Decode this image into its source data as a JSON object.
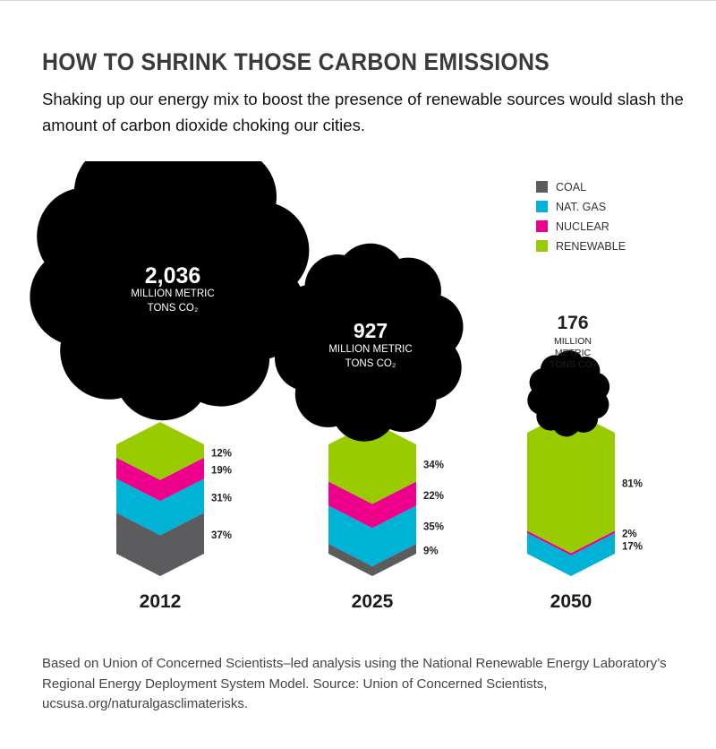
{
  "title": "HOW TO SHRINK THOSE CARBON EMISSIONS",
  "subtitle": "Shaking up our energy mix to boost the presence of renewable sources would slash the amount of carbon dioxide choking our cities.",
  "footer": "Based on Union of Concerned Scientists–led analysis using the National Renewable Energy Laboratory’s Regional Energy Deployment System Model. Source: Union of Concerned Scientists, ucsusa.org/naturalgasclimaterisks.",
  "chart_data": {
    "type": "bar",
    "categories": [
      "2012",
      "2025",
      "2050"
    ],
    "stack_order": [
      "COAL",
      "NAT. GAS",
      "NUCLEAR",
      "RENEWABLE"
    ],
    "series": [
      {
        "name": "COAL",
        "color": "#5c5c5e",
        "values": [
          37,
          9,
          0
        ]
      },
      {
        "name": "NAT. GAS",
        "color": "#00b2d6",
        "values": [
          31,
          35,
          17
        ]
      },
      {
        "name": "NUCLEAR",
        "color": "#ec008c",
        "values": [
          19,
          22,
          2
        ]
      },
      {
        "name": "RENEWABLE",
        "color": "#99cc00",
        "values": [
          12,
          34,
          81
        ]
      }
    ],
    "segment_labels": [
      [
        "37%",
        "31%",
        "19%",
        "12%"
      ],
      [
        "9%",
        "35%",
        "22%",
        "34%"
      ],
      [
        "",
        "17%",
        "2%",
        "81%"
      ]
    ],
    "emissions": [
      {
        "year": "2012",
        "value": 2036,
        "value_label": "2,036",
        "unit_lines": [
          "MILLION METRIC",
          "TONS CO₂"
        ]
      },
      {
        "year": "2025",
        "value": 927,
        "value_label": "927",
        "unit_lines": [
          "MILLION METRIC",
          "TONS CO₂"
        ]
      },
      {
        "year": "2050",
        "value": 176,
        "value_label": "176",
        "unit_lines": [
          "MILLION",
          "METRIC",
          "TONS CO₂"
        ]
      }
    ],
    "legend": [
      {
        "label": "COAL",
        "color": "#5c5c5e"
      },
      {
        "label": "NAT. GAS",
        "color": "#00b2d6"
      },
      {
        "label": "NUCLEAR",
        "color": "#ec008c"
      },
      {
        "label": "RENEWABLE",
        "color": "#99cc00"
      }
    ],
    "legend_position": "top-right"
  }
}
